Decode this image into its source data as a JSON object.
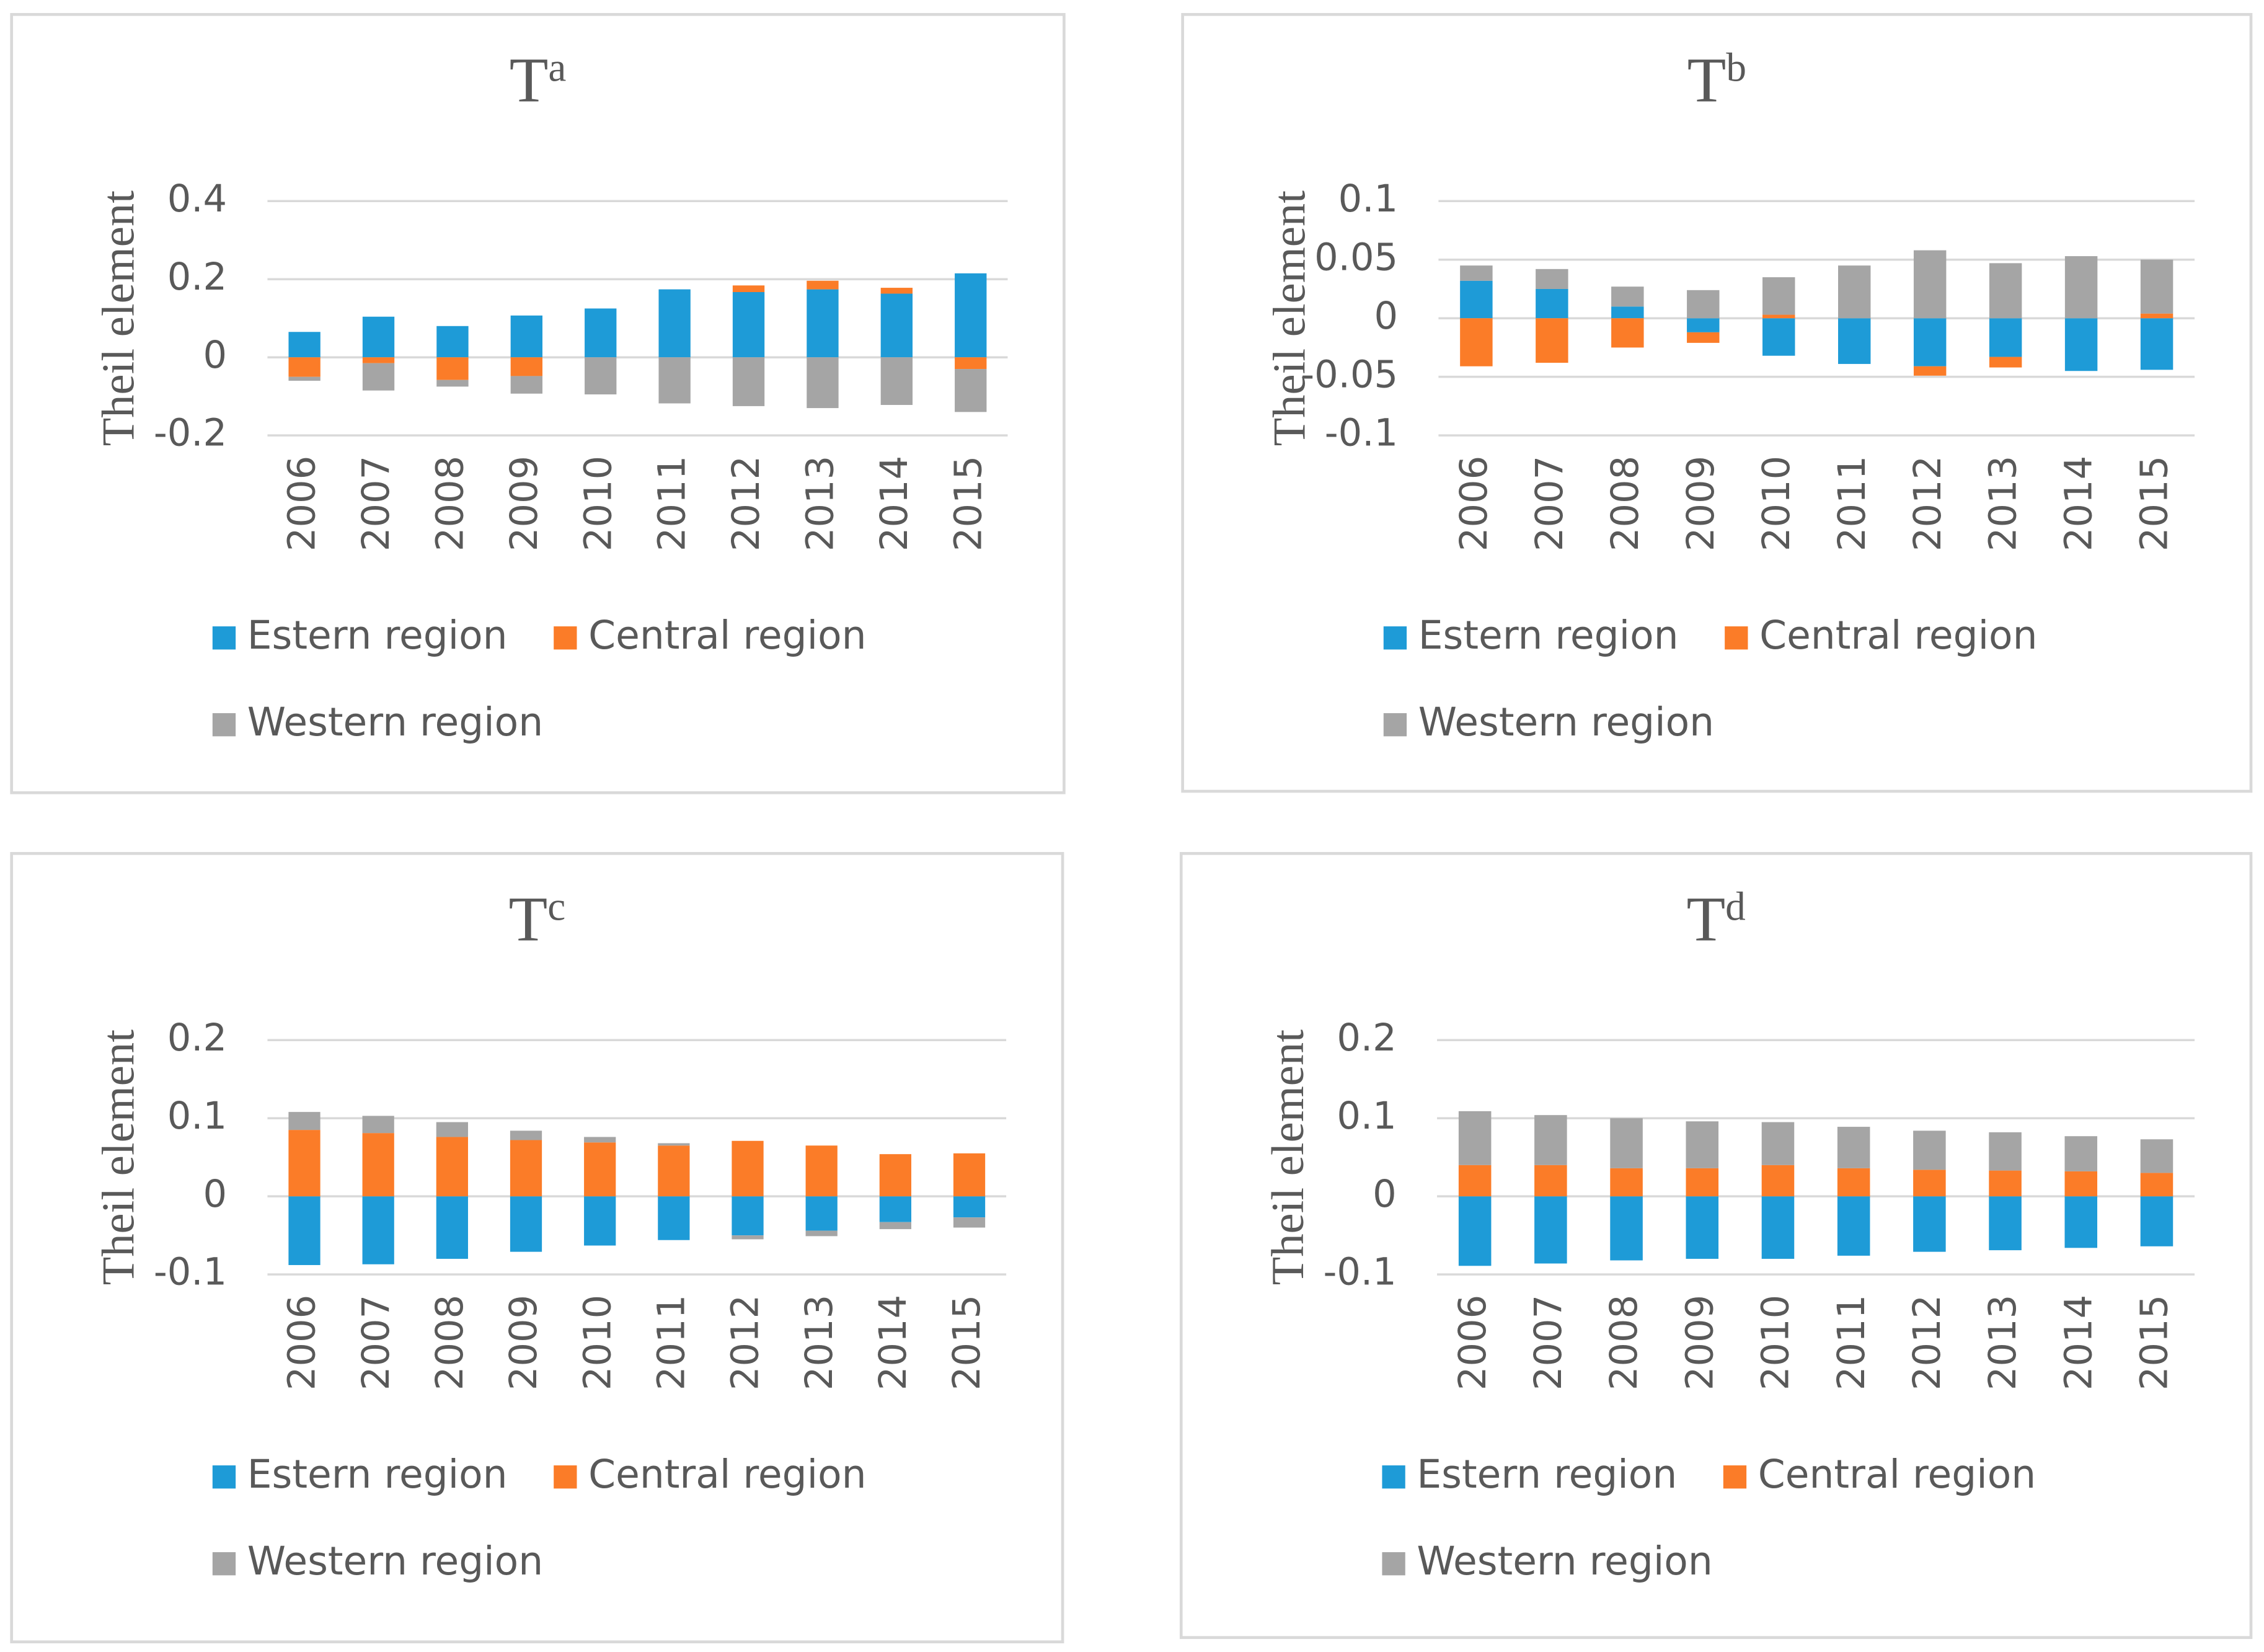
{
  "chart_data": [
    {
      "type": "bar",
      "stacked": true,
      "title": "T",
      "title_superscript": "a",
      "y_label": "Theil element",
      "categories": [
        "2006",
        "2007",
        "2008",
        "2009",
        "2010",
        "2011",
        "2012",
        "2013",
        "2014",
        "2015"
      ],
      "series": [
        {
          "name": "Estern region",
          "color": "#1e9bd7",
          "values": [
            0.065,
            0.104,
            0.08,
            0.107,
            0.125,
            0.174,
            0.167,
            0.174,
            0.163,
            0.215
          ]
        },
        {
          "name": "Central region",
          "color": "#fb7c28",
          "values": [
            -0.05,
            -0.015,
            -0.058,
            -0.048,
            0,
            0,
            0.017,
            0.022,
            0.015,
            -0.03
          ]
        },
        {
          "name": "Western region",
          "color": "#a5a5a5",
          "values": [
            -0.01,
            -0.07,
            -0.017,
            -0.045,
            -0.095,
            -0.118,
            -0.125,
            -0.13,
            -0.122,
            -0.11
          ]
        }
      ],
      "ylim": [
        -0.2,
        0.4
      ],
      "yticks": [
        -0.2,
        0,
        0.2,
        0.4
      ],
      "grid": true
    },
    {
      "type": "bar",
      "stacked": true,
      "title": "T",
      "title_superscript": "b",
      "y_label": "Theil element",
      "categories": [
        "2006",
        "2007",
        "2008",
        "2009",
        "2010",
        "2011",
        "2012",
        "2013",
        "2014",
        "2015"
      ],
      "series": [
        {
          "name": "Estern region",
          "color": "#1e9bd7",
          "values": [
            0.032,
            0.025,
            0.01,
            -0.012,
            -0.032,
            -0.039,
            -0.041,
            -0.033,
            -0.045,
            -0.044
          ]
        },
        {
          "name": "Central region",
          "color": "#fb7c28",
          "values": [
            -0.041,
            -0.038,
            -0.025,
            -0.009,
            0.003,
            0,
            -0.008,
            -0.009,
            0,
            0.004
          ]
        },
        {
          "name": "Western region",
          "color": "#a5a5a5",
          "values": [
            0.013,
            0.017,
            0.017,
            0.024,
            0.032,
            0.045,
            0.058,
            0.047,
            0.053,
            0.046
          ]
        }
      ],
      "ylim": [
        -0.1,
        0.1
      ],
      "yticks": [
        -0.1,
        -0.05,
        0,
        0.05,
        0.1
      ],
      "grid": true
    },
    {
      "type": "bar",
      "stacked": true,
      "title": "T",
      "title_superscript": "c",
      "y_label": "Theil element",
      "categories": [
        "2006",
        "2007",
        "2008",
        "2009",
        "2010",
        "2011",
        "2012",
        "2013",
        "2014",
        "2015"
      ],
      "series": [
        {
          "name": "Estern region",
          "color": "#1e9bd7",
          "values": [
            -0.088,
            -0.087,
            -0.08,
            -0.071,
            -0.063,
            -0.056,
            -0.05,
            -0.044,
            -0.033,
            -0.027
          ]
        },
        {
          "name": "Central region",
          "color": "#fb7c28",
          "values": [
            0.085,
            0.081,
            0.076,
            0.072,
            0.069,
            0.065,
            0.071,
            0.065,
            0.054,
            0.055
          ]
        },
        {
          "name": "Western region",
          "color": "#a5a5a5",
          "values": [
            0.023,
            0.022,
            0.019,
            0.012,
            0.007,
            0.003,
            -0.005,
            -0.007,
            -0.009,
            -0.013
          ]
        }
      ],
      "ylim": [
        -0.1,
        0.2
      ],
      "yticks": [
        -0.1,
        0,
        0.1,
        0.2
      ],
      "grid": true
    },
    {
      "type": "bar",
      "stacked": true,
      "title": "T",
      "title_superscript": "d",
      "y_label": "Theil element",
      "categories": [
        "2006",
        "2007",
        "2008",
        "2009",
        "2010",
        "2011",
        "2012",
        "2013",
        "2014",
        "2015"
      ],
      "series": [
        {
          "name": "Estern region",
          "color": "#1e9bd7",
          "values": [
            -0.089,
            -0.086,
            -0.082,
            -0.08,
            -0.08,
            -0.076,
            -0.071,
            -0.069,
            -0.066,
            -0.064
          ]
        },
        {
          "name": "Central region",
          "color": "#fb7c28",
          "values": [
            0.04,
            0.04,
            0.036,
            0.036,
            0.04,
            0.036,
            0.034,
            0.033,
            0.032,
            0.03
          ]
        },
        {
          "name": "Western region",
          "color": "#a5a5a5",
          "values": [
            0.069,
            0.064,
            0.064,
            0.06,
            0.055,
            0.053,
            0.05,
            0.049,
            0.045,
            0.043
          ]
        }
      ],
      "ylim": [
        -0.1,
        0.2
      ],
      "yticks": [
        -0.1,
        0,
        0.1,
        0.2
      ],
      "grid": true
    }
  ]
}
